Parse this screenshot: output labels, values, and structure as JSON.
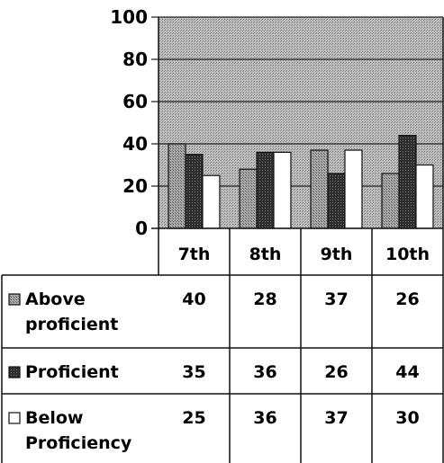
{
  "chart_data": {
    "type": "bar",
    "title": "",
    "xlabel": "",
    "ylabel": "",
    "ylim": [
      0,
      100
    ],
    "yticks": [
      0,
      20,
      40,
      60,
      80,
      100
    ],
    "categories": [
      "7th",
      "8th",
      "9th",
      "10th"
    ],
    "grid": true,
    "legend_placement": "left of data table",
    "series": [
      {
        "name": "Above proficient",
        "label_lines": [
          "Above",
          "proficient"
        ],
        "values": [
          40,
          28,
          37,
          26
        ],
        "fill": "#9a9a9a"
      },
      {
        "name": "Proficient",
        "label_lines": [
          "Proficient"
        ],
        "values": [
          35,
          36,
          26,
          44
        ],
        "fill": "#3c3c3c"
      },
      {
        "name": "Below Proficiency",
        "label_lines": [
          "Below",
          "Proficiency"
        ],
        "values": [
          25,
          36,
          37,
          30
        ],
        "fill": "#ffffff"
      }
    ]
  },
  "colors": {
    "plot_background": "#a9a9a9",
    "gridline": "#222222",
    "axis": "#111111"
  }
}
